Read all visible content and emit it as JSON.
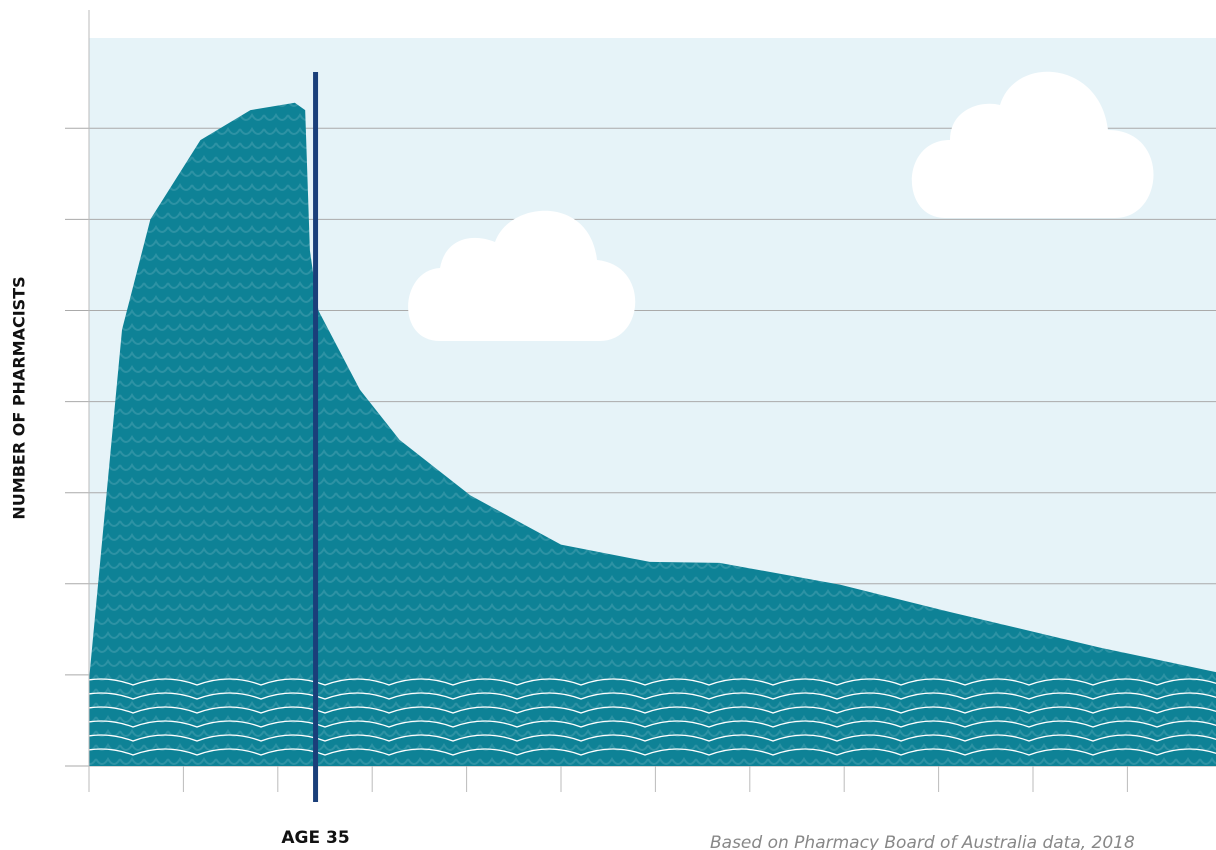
{
  "chart_data": {
    "type": "area",
    "y_label": "NUMBER OF PHARMACISTS",
    "source": "Based on Pharmacy Board of Australia data, 2018",
    "x": [
      0,
      0.12,
      0.35,
      0.65,
      1.18,
      1.71,
      2.18,
      2.29,
      2.34,
      2.43,
      2.87,
      3.29,
      4.04,
      5.0,
      5.94,
      6.68,
      7.96,
      9.12,
      10.71,
      11.94
    ],
    "values": [
      0.94,
      2.26,
      4.79,
      6.0,
      6.87,
      7.2,
      7.28,
      7.2,
      5.66,
      5.0,
      4.13,
      3.58,
      2.97,
      2.43,
      2.24,
      2.23,
      1.99,
      1.69,
      1.3,
      1.03
    ],
    "color": "#0e8296",
    "xlim": [
      0,
      12
    ],
    "ylim": [
      0,
      8
    ],
    "xticks": [
      0,
      1,
      2,
      3,
      4,
      5,
      6,
      7,
      8,
      9,
      10,
      11,
      12
    ],
    "yticks": [
      0,
      1,
      2,
      3,
      4,
      5,
      6,
      7
    ],
    "grid": true,
    "markers": [
      {
        "x": 2.4,
        "label": "AGE 35",
        "color": "#1a3f7a"
      }
    ]
  }
}
